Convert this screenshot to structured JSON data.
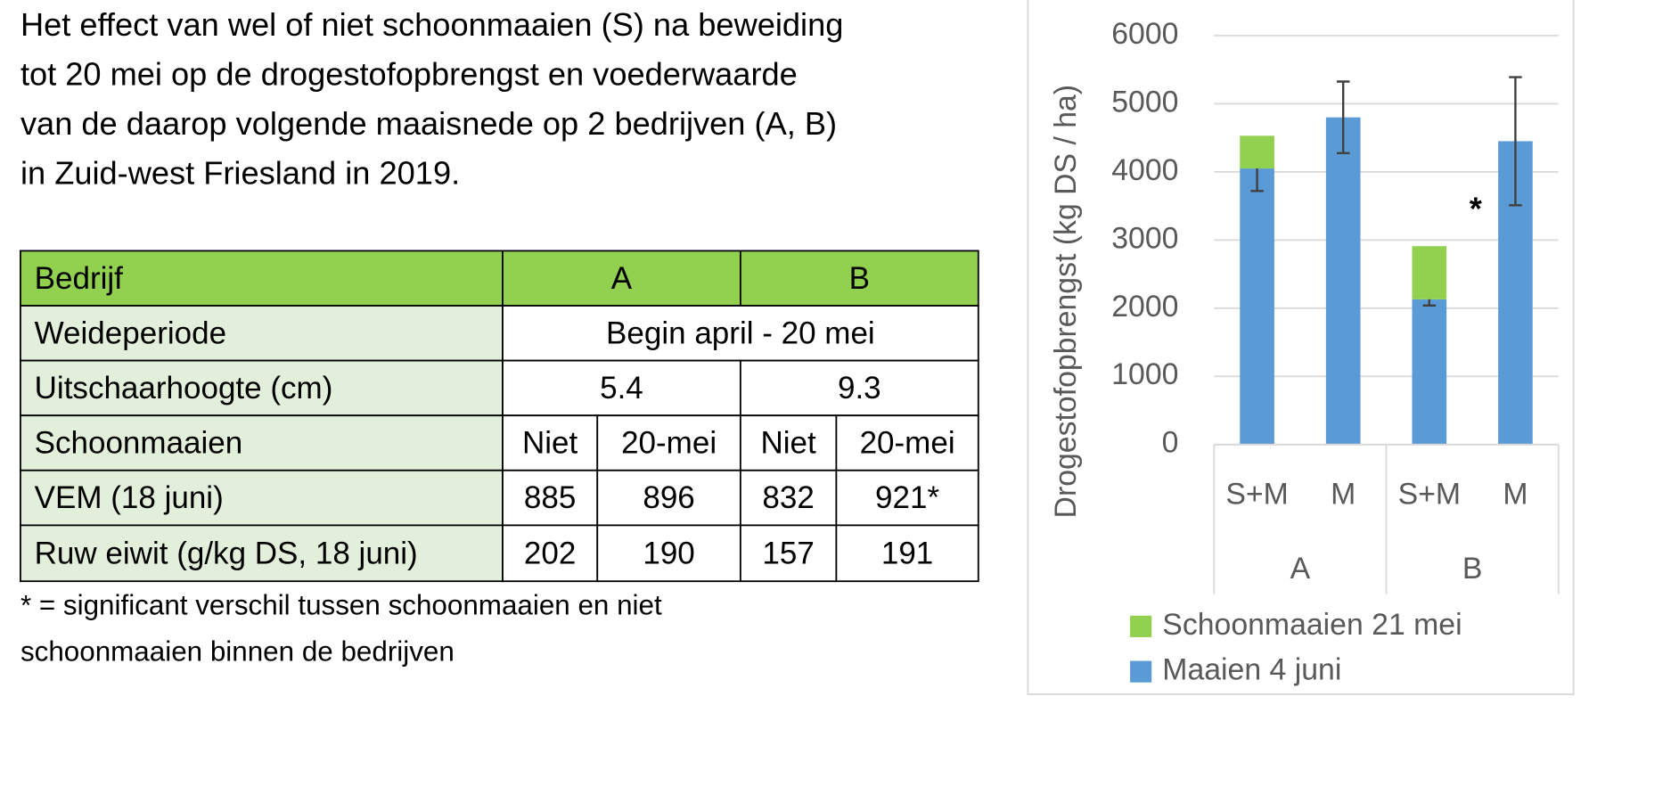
{
  "heading": {
    "lines": [
      "Het effect van wel of niet schoonmaaien (S) na beweiding",
      "tot 20 mei op de drogestofopbrengst en voederwaarde",
      "van de daarop volgende maaisnede op 2 bedrijven (A, B)",
      "in Zuid-west Friesland in 2019."
    ]
  },
  "table": {
    "rows": [
      [
        "Bedrijf",
        "A",
        "B"
      ],
      [
        "Weideperiode",
        "Begin april - 20 mei"
      ],
      [
        "Uitschaarhoogte (cm)",
        "5.4",
        "9.3"
      ],
      [
        "Schoonmaaien",
        "Niet",
        "20-mei",
        "Niet",
        "20-mei"
      ],
      [
        "VEM (18 juni)",
        "885",
        "896",
        "832",
        "921*"
      ],
      [
        "Ruw eiwit (g/kg DS, 18 juni)",
        "202",
        "190",
        "157",
        "191"
      ]
    ]
  },
  "footnote": {
    "lines": [
      "* = significant verschil tussen schoonmaaien en niet",
      "schoonmaaien binnen de bedrijven"
    ]
  },
  "chart_data": {
    "type": "stacked_bar",
    "y_label": "Drogestofopbrengst (kg DS / ha)",
    "categories": [
      "S+M",
      "M",
      "S+M",
      "M"
    ],
    "groups": [
      "A",
      "B"
    ],
    "series": [
      {
        "name": "Maaien 4 juni",
        "color": "#5b9bd5",
        "values": [
          4050,
          4800,
          2130,
          4450
        ],
        "errors": [
          330,
          525,
          90,
          940
        ]
      },
      {
        "name": "Schoonmaaien 21 mei",
        "color": "#92d050",
        "values": [
          480,
          null,
          780,
          null
        ]
      }
    ],
    "annotation": "*",
    "ylim": [
      0,
      6000
    ],
    "yticks": [
      0,
      1000,
      2000,
      3000,
      4000,
      5000,
      6000
    ],
    "grid": true
  }
}
